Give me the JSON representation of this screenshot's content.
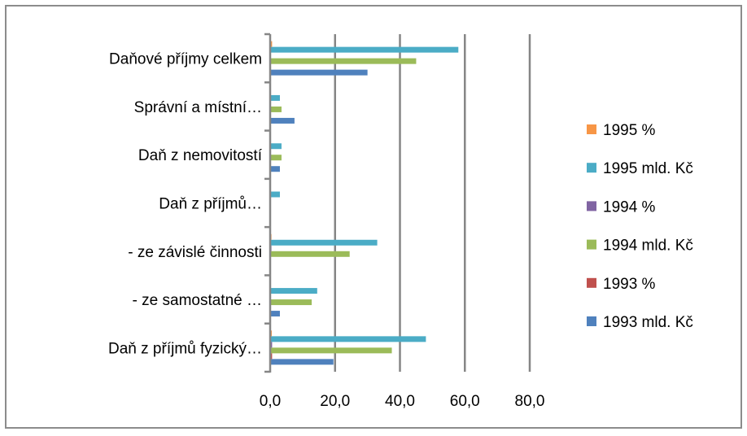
{
  "chart_data": {
    "type": "bar",
    "orientation": "horizontal",
    "title": "",
    "xlabel": "",
    "ylabel": "",
    "xlim": [
      0,
      80
    ],
    "x_ticks": [
      "0,0",
      "20,0",
      "40,0",
      "60,0",
      "80,0"
    ],
    "x_tick_values": [
      0,
      20,
      40,
      60,
      80
    ],
    "grid": "vertical major gridlines",
    "legend_position": "right",
    "categories": [
      "Daň z příjmů fyzický…",
      "- ze samostatné …",
      "- ze závislé činnosti",
      "Daň z příjmů…",
      "Daň z nemovitostí",
      "Správní a místní…",
      "Daňové příjmy celkem"
    ],
    "series": [
      {
        "name": "1993 mld. Kč",
        "color": "#4f81bd",
        "values": [
          19.5,
          3.0,
          0.0,
          0.0,
          3.0,
          7.5,
          30.0
        ]
      },
      {
        "name": "1993 %",
        "color": "#c0504d",
        "values": [
          0.6,
          0.1,
          0.0,
          0.0,
          0.1,
          0.2,
          0.0
        ]
      },
      {
        "name": "1994 mld. Kč",
        "color": "#9bbb59",
        "values": [
          37.5,
          12.8,
          24.5,
          0.0,
          3.5,
          3.5,
          45.0
        ]
      },
      {
        "name": "1994 %",
        "color": "#8064a2",
        "values": [
          0.6,
          0.2,
          0.4,
          0.0,
          0.1,
          0.1,
          0.0
        ]
      },
      {
        "name": "1995 mld. Kč",
        "color": "#4bacc6",
        "values": [
          48.0,
          14.5,
          33.0,
          3.0,
          3.5,
          3.0,
          58.0
        ]
      },
      {
        "name": "1995 %",
        "color": "#f79646",
        "values": [
          0.5,
          0.2,
          0.4,
          0.0,
          0.1,
          0.1,
          0.6
        ]
      }
    ],
    "legend_order": [
      "1995 %",
      "1995 mld. Kč",
      "1994 %",
      "1994 mld. Kč",
      "1993 %",
      "1993 mld. Kč"
    ]
  }
}
